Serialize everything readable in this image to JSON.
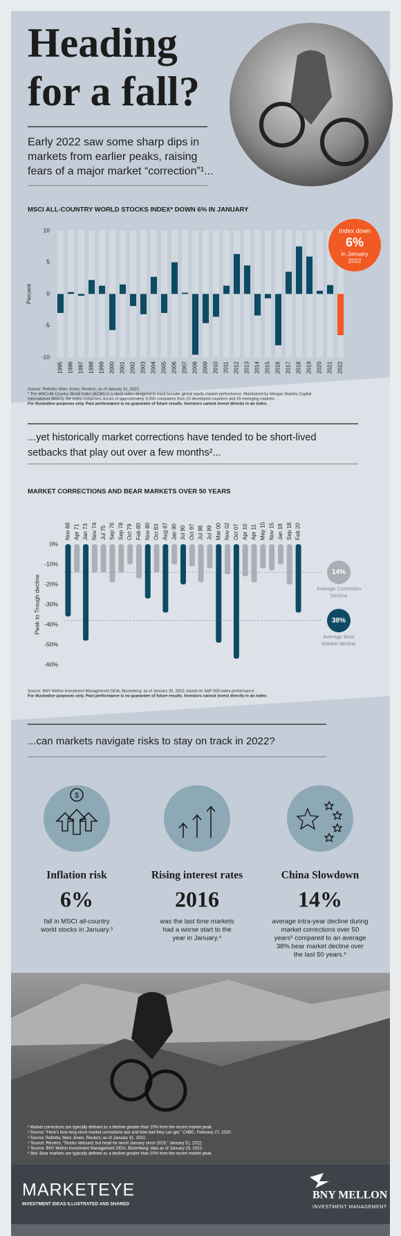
{
  "header": {
    "title_lines": [
      "Heading",
      "for a fall?"
    ],
    "intro_lines": [
      "Early 2022 saw some sharp dips in",
      "markets from earlier peaks, raising",
      "fears of a major market “correction”¹..."
    ]
  },
  "chart_data": [
    {
      "type": "bar",
      "title": "MSCI ALL-COUNTRY WORLD STOCKS INDEX* DOWN 6% IN JANUARY",
      "y_label": "Percent",
      "categories": [
        "1995",
        "1996",
        "1997",
        "1998",
        "1999",
        "2000",
        "2001",
        "2002",
        "2003",
        "2004",
        "2005",
        "2006",
        "2007",
        "2008",
        "2009",
        "2010",
        "2011",
        "2012",
        "2013",
        "2014",
        "2015",
        "2016",
        "2017",
        "2018",
        "2019",
        "2020",
        "2021",
        "2022"
      ],
      "values": [
        -3,
        0.3,
        -0.3,
        2.2,
        1.3,
        -5.7,
        1.5,
        -1.9,
        -3.2,
        2.7,
        -3,
        5,
        0.2,
        -9.6,
        -4.6,
        -3.6,
        1.3,
        6.3,
        4.5,
        -3.4,
        -0.7,
        -8.1,
        3.5,
        7.5,
        5.9,
        0.5,
        1.4,
        -6.5
      ],
      "colors": [
        "#0d4a63",
        "#0d4a63",
        "#0d4a63",
        "#0d4a63",
        "#0d4a63",
        "#0d4a63",
        "#0d4a63",
        "#0d4a63",
        "#0d4a63",
        "#0d4a63",
        "#0d4a63",
        "#0d4a63",
        "#0d4a63",
        "#0d4a63",
        "#0d4a63",
        "#0d4a63",
        "#0d4a63",
        "#0d4a63",
        "#0d4a63",
        "#0d4a63",
        "#0d4a63",
        "#0d4a63",
        "#0d4a63",
        "#0d4a63",
        "#0d4a63",
        "#0d4a63",
        "#0d4a63",
        "#f15a22"
      ],
      "ylim": [
        -10,
        10
      ],
      "yticks": [
        -10,
        -5,
        0,
        5,
        10
      ],
      "annotation_lines": [
        "Index down",
        "6%",
        "in January",
        "2022"
      ],
      "source_lines": [
        "Source: Refinitiv, Marc Jones, Reuters; as of January 31, 2022.",
        "* The MSCI All Country World Index (ACWI) is a stock index designed to track broader global equity-market performance. Maintained by Morgan Stanley Capital",
        "International (MSCI), the index comprises stocks of approximately 3,000 companies from 23 developed countries and 25 emerging markets."
      ],
      "disclaimer": "For illustrative purposes only. Past performance is no guarantee of future results. Investors cannot invest directly in an index."
    },
    {
      "type": "bar",
      "title": "MARKET CORRECTIONS AND BEAR MARKETS OVER 50 YEARS",
      "y_label": "Peak to Trough decline",
      "categories": [
        "Nov 68",
        "Apr 71",
        "Jan 73",
        "Nov 74",
        "Jul 75",
        "Sep 76",
        "Sep 78",
        "Oct 79",
        "Feb 80",
        "Nov 80",
        "Oct 83",
        "Aug 87",
        "Jan 90",
        "Jul 90",
        "Oct 97",
        "Jul 98",
        "Jul 99",
        "Mar 00",
        "Nov 02",
        "Oct 07",
        "Apr 10",
        "Apr 11",
        "May 15",
        "Nov 15",
        "Jan 18",
        "Sep 18",
        "Feb 20"
      ],
      "values": [
        -36,
        -14,
        -48,
        -14,
        -14,
        -19,
        -14,
        -10,
        -17,
        -27,
        -14,
        -34,
        -10,
        -20,
        -11,
        -19,
        -12,
        -49,
        -15,
        -57,
        -16,
        -19,
        -12,
        -13,
        -10,
        -20,
        -34
      ],
      "colors": [
        "#0d4a63",
        "#a9afb5",
        "#0d4a63",
        "#a9afb5",
        "#a9afb5",
        "#a9afb5",
        "#a9afb5",
        "#a9afb5",
        "#a9afb5",
        "#0d4a63",
        "#a9afb5",
        "#0d4a63",
        "#a9afb5",
        "#0d4a63",
        "#a9afb5",
        "#a9afb5",
        "#a9afb5",
        "#0d4a63",
        "#a9afb5",
        "#0d4a63",
        "#a9afb5",
        "#a9afb5",
        "#a9afb5",
        "#a9afb5",
        "#a9afb5",
        "#a9afb5",
        "#0d4a63"
      ],
      "ylim": [
        -60,
        0
      ],
      "yticks": [
        {
          "value": 0,
          "label": "0%"
        },
        {
          "value": -10,
          "label": "-10%"
        },
        {
          "value": -20,
          "label": "-20%"
        },
        {
          "value": -30,
          "label": "-30%"
        },
        {
          "value": -40,
          "label": "-40%"
        },
        {
          "value": -50,
          "label": "-50%"
        },
        {
          "value": -60,
          "label": "-60%"
        }
      ],
      "reference_lines": [
        {
          "value": -14,
          "label": "14%",
          "color": "#a9afb5",
          "text_lines": [
            "Average Correction",
            "Decline"
          ]
        },
        {
          "value": -38,
          "label": "38%",
          "color": "#0d4a63",
          "text_lines": [
            "Average Bear",
            "Market decline"
          ]
        }
      ],
      "source_lines": [
        "Source: BNY Mellon Investment Management GEIA, Bloomberg; as of January 25, 2022; based on S&P 500 index performance."
      ],
      "disclaimer": "For illustrative purposes only. Past performance is no guarantee of future results. Investors cannot invest directly in an index."
    }
  ],
  "section2": {
    "lines": [
      "...yet historically market corrections have tended to be short-lived",
      "setbacks that play out over a few months²..."
    ]
  },
  "section3": {
    "heading": "...can markets navigate risks to stay on track in 2022?"
  },
  "cards": [
    {
      "title": "Inflation risk",
      "figure": "6%",
      "text_lines": [
        "fall in MSCI all-country",
        "world stocks in January.³"
      ]
    },
    {
      "title": "Rising interest rates",
      "figure": "2016",
      "text_lines": [
        "was the last time markets",
        "had a worse start to the",
        "year in January.⁴"
      ]
    },
    {
      "title": "China Slowdown",
      "figure": "14%",
      "text_lines": [
        "average intra-year decline during",
        "market corrections over 50",
        "years⁵ compared to an average",
        "38% bear market decline over",
        "the last 50 years.⁶"
      ]
    }
  ],
  "footnotes": [
    "¹ Market corrections are typically defined as a decline greater than 10% from the recent market peak.",
    "² Source: “Here's how long stock market corrections last and how bad they can get,” CNBC, February 27, 2020.",
    "³ Source: Refinitiv, Marc Jones, Reuters; as of January 31, 2022.",
    "⁴ Source: Reuters, “Stocks rebound, but head for worst January since 2016,” January 31, 2022.",
    "⁵ Source: BNY Mellon Investment Management GEIA, Bloomberg; data as of January 25, 2022.",
    "⁶ Ibid. Bear markets are typically defined as a decline greater than 20% from the recent market peak."
  ],
  "footer": {
    "brand": "MARKETEYE",
    "tagline": "INVESTMENT IDEAS ILLUSTRATED AND SHARED",
    "company": "BNY MELLON",
    "division": "INVESTMENT MANAGEMENT"
  }
}
